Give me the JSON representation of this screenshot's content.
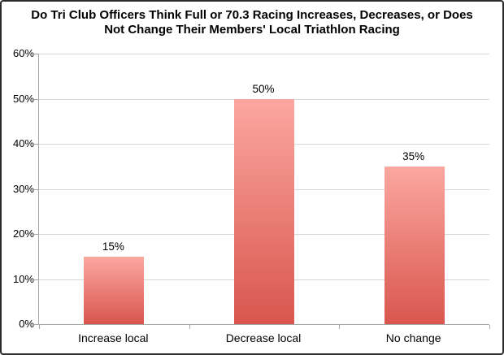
{
  "chart_data": {
    "type": "bar",
    "title": "Do Tri Club Officers Think Full or 70.3 Racing Increases, Decreases, or Does Not Change Their Members' Local Triathlon Racing",
    "title_lines": [
      "Do Tri Club Officers Think Full or 70.3 Racing Increases, Decreases, or Does",
      "Not Change Their Members' Local Triathlon Racing"
    ],
    "categories": [
      "Increase local",
      "Decrease local",
      "No change"
    ],
    "values": [
      15,
      50,
      35
    ],
    "data_labels": [
      "15%",
      "50%",
      "35%"
    ],
    "xlabel": "",
    "ylabel": "",
    "ylim": [
      0,
      60
    ],
    "y_tick_step": 10,
    "y_tick_labels_top_to_bottom": [
      "60%",
      "50%",
      "40%",
      "30%",
      "20%",
      "10%",
      "0%"
    ],
    "grid": true,
    "legend": false,
    "layout": {
      "gap_width_percent": 150,
      "data_labels_position": "outside-end"
    },
    "colors": {
      "bar_gradient_top": "#FBA7A0",
      "bar_gradient_bottom": "#D9564E",
      "gridline": "#d6d6d6",
      "axis": "#a6a6a6",
      "text": "#000000",
      "chart_border": "#2b2b2b",
      "background": "#ffffff"
    }
  }
}
